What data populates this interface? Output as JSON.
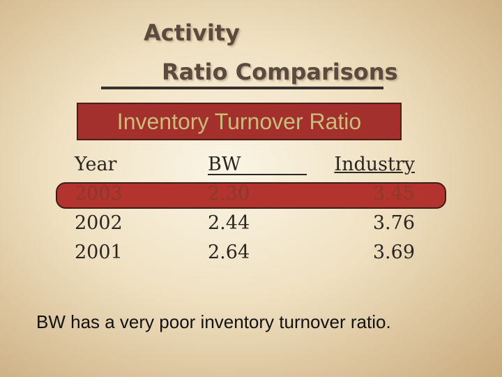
{
  "header": {
    "title_line1": "Activity",
    "title_line2": "Ratio Comparisons"
  },
  "subtitle": "Inventory Turnover Ratio",
  "table": {
    "columns": [
      "Year",
      "BW",
      "Industry"
    ],
    "rows": [
      [
        "2003",
        "2.30",
        "3.45"
      ],
      [
        "2002",
        "2.44",
        "3.76"
      ],
      [
        "2001",
        "2.64",
        "3.69"
      ]
    ]
  },
  "footer": "BW has a very poor inventory turnover ratio."
}
